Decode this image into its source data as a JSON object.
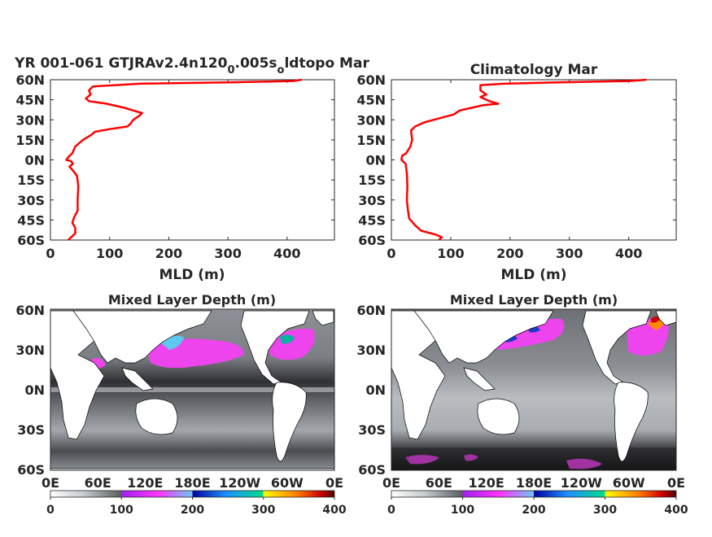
{
  "figure": {
    "profile_left_title": "YR 001-061 GTJRAv2.4n120",
    "profile_left_title_sub1": "0",
    "profile_left_title_mid": ".005s",
    "profile_left_title_sub2": "o",
    "profile_left_title_end": "ldtopo Mar",
    "profile_right_title": "Climatology Mar",
    "map_left_title": "Mixed Layer Depth (m)",
    "map_right_title": "Mixed Layer Depth (m)",
    "profile_xlabel": "MLD (m)"
  },
  "colors": {
    "line": "#ff0000",
    "axis": "#262626",
    "land": "#ffffff"
  },
  "chart_data": [
    {
      "type": "line",
      "title": "YR 001-061 GTJRAv2.4n120_0.005s_oldtopo Mar",
      "xlabel": "MLD (m)",
      "xlim": [
        0,
        480
      ],
      "ylim": [
        -60,
        60
      ],
      "xticks": [
        "0",
        "100",
        "200",
        "300",
        "400"
      ],
      "yticks": [
        "60N",
        "45N",
        "30N",
        "15N",
        "0N",
        "15S",
        "30S",
        "45S",
        "60S"
      ],
      "series": [
        {
          "values": [
            {
              "lat": 60,
              "mld": 425
            },
            {
              "lat": 59,
              "mld": 410
            },
            {
              "lat": 58,
              "mld": 300
            },
            {
              "lat": 57,
              "mld": 150
            },
            {
              "lat": 55,
              "mld": 72
            },
            {
              "lat": 52,
              "mld": 65
            },
            {
              "lat": 49,
              "mld": 68
            },
            {
              "lat": 46,
              "mld": 60
            },
            {
              "lat": 44,
              "mld": 65
            },
            {
              "lat": 42,
              "mld": 95
            },
            {
              "lat": 39,
              "mld": 125
            },
            {
              "lat": 37,
              "mld": 140
            },
            {
              "lat": 35,
              "mld": 155
            },
            {
              "lat": 33,
              "mld": 150
            },
            {
              "lat": 30,
              "mld": 140
            },
            {
              "lat": 27,
              "mld": 135
            },
            {
              "lat": 25,
              "mld": 130
            },
            {
              "lat": 23,
              "mld": 100
            },
            {
              "lat": 21,
              "mld": 75
            },
            {
              "lat": 19,
              "mld": 70
            },
            {
              "lat": 15,
              "mld": 55
            },
            {
              "lat": 10,
              "mld": 42
            },
            {
              "lat": 5,
              "mld": 37
            },
            {
              "lat": 2,
              "mld": 30
            },
            {
              "lat": 0,
              "mld": 27
            },
            {
              "lat": -1,
              "mld": 35
            },
            {
              "lat": -3,
              "mld": 38
            },
            {
              "lat": -5,
              "mld": 32
            },
            {
              "lat": -8,
              "mld": 38
            },
            {
              "lat": -12,
              "mld": 45
            },
            {
              "lat": -20,
              "mld": 47
            },
            {
              "lat": -30,
              "mld": 46
            },
            {
              "lat": -38,
              "mld": 46
            },
            {
              "lat": -43,
              "mld": 40
            },
            {
              "lat": -47,
              "mld": 37
            },
            {
              "lat": -51,
              "mld": 42
            },
            {
              "lat": -55,
              "mld": 42
            },
            {
              "lat": -58,
              "mld": 35
            },
            {
              "lat": -60,
              "mld": 30
            }
          ]
        }
      ]
    },
    {
      "type": "line",
      "title": "Climatology Mar",
      "xlabel": "MLD (m)",
      "xlim": [
        0,
        480
      ],
      "ylim": [
        -60,
        60
      ],
      "xticks": [
        "0",
        "100",
        "200",
        "300",
        "400"
      ],
      "yticks": [
        "60N",
        "45N",
        "30N",
        "15N",
        "0N",
        "15S",
        "30S",
        "45S",
        "60S"
      ],
      "series": [
        {
          "values": [
            {
              "lat": 60,
              "mld": 430
            },
            {
              "lat": 59,
              "mld": 400
            },
            {
              "lat": 58,
              "mld": 280
            },
            {
              "lat": 57,
              "mld": 190
            },
            {
              "lat": 56,
              "mld": 150
            },
            {
              "lat": 52,
              "mld": 150
            },
            {
              "lat": 49,
              "mld": 160
            },
            {
              "lat": 47,
              "mld": 150
            },
            {
              "lat": 44,
              "mld": 165
            },
            {
              "lat": 42,
              "mld": 180
            },
            {
              "lat": 41,
              "mld": 155
            },
            {
              "lat": 39,
              "mld": 135
            },
            {
              "lat": 37,
              "mld": 115
            },
            {
              "lat": 34,
              "mld": 105
            },
            {
              "lat": 31,
              "mld": 80
            },
            {
              "lat": 28,
              "mld": 55
            },
            {
              "lat": 25,
              "mld": 40
            },
            {
              "lat": 22,
              "mld": 33
            },
            {
              "lat": 15,
              "mld": 35
            },
            {
              "lat": 10,
              "mld": 32
            },
            {
              "lat": 5,
              "mld": 25
            },
            {
              "lat": 3,
              "mld": 18
            },
            {
              "lat": 0,
              "mld": 17
            },
            {
              "lat": -3,
              "mld": 24
            },
            {
              "lat": -10,
              "mld": 26
            },
            {
              "lat": -20,
              "mld": 27
            },
            {
              "lat": -30,
              "mld": 26
            },
            {
              "lat": -38,
              "mld": 28
            },
            {
              "lat": -44,
              "mld": 30
            },
            {
              "lat": -49,
              "mld": 40
            },
            {
              "lat": -53,
              "mld": 50
            },
            {
              "lat": -56,
              "mld": 75
            },
            {
              "lat": -58,
              "mld": 85
            },
            {
              "lat": -60,
              "mld": 80
            }
          ]
        }
      ]
    },
    {
      "type": "heatmap",
      "title": "Mixed Layer Depth (m)",
      "xticks": [
        "0E",
        "60E",
        "120E",
        "180E",
        "120W",
        "60W",
        "0E"
      ],
      "yticks": [
        "60N",
        "30N",
        "0N",
        "30S",
        "60S"
      ],
      "colorbar_ticks": [
        "0",
        "100",
        "200",
        "300",
        "400"
      ],
      "clim": [
        0,
        400
      ]
    },
    {
      "type": "heatmap",
      "title": "Mixed Layer Depth (m)",
      "xticks": [
        "0E",
        "60E",
        "120E",
        "180E",
        "120W",
        "60W",
        "0E"
      ],
      "yticks": [
        "60N",
        "30N",
        "0N",
        "30S",
        "60S"
      ],
      "colorbar_ticks": [
        "0",
        "100",
        "200",
        "300",
        "400"
      ],
      "clim": [
        0,
        400
      ]
    }
  ]
}
